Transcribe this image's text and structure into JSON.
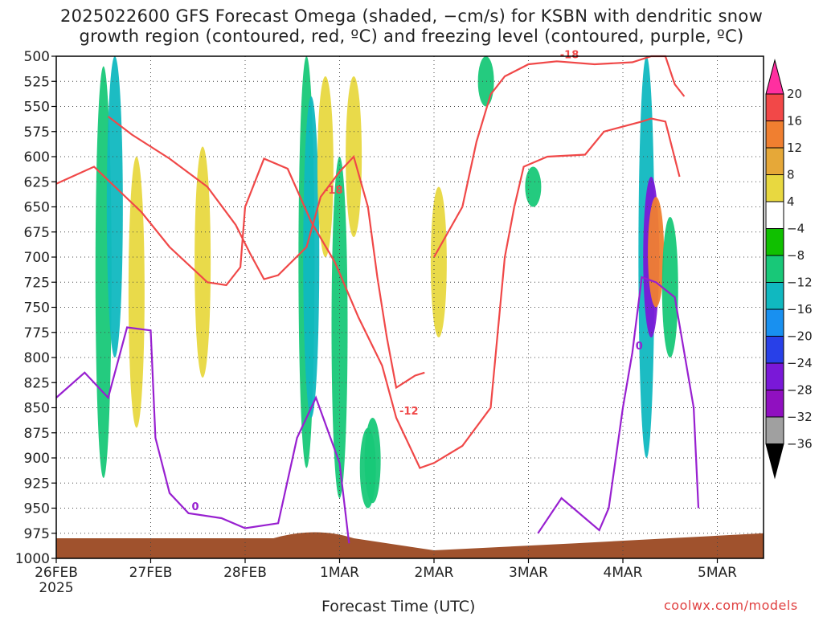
{
  "title_line1": "2025022600 GFS Forecast Omega (shaded, −cm/s) for KSBN with dendritic snow",
  "title_line2": "growth region (contoured, red, ºC) and freezing level (contoured, purple, ºC)",
  "credit": "coolwx.com/models",
  "chart_data": {
    "type": "heatmap",
    "title": "2025022600 GFS Forecast Omega (shaded, −cm/s) for KSBN with dendritic snow growth region (contoured, red, ºC) and freezing level (contoured, purple, ºC)",
    "xlabel": "Forecast Time (UTC)",
    "ylabel": "",
    "x_ticks": [
      "26FEB",
      "27FEB",
      "28FEB",
      "1MAR",
      "2MAR",
      "3MAR",
      "4MAR",
      "5MAR"
    ],
    "x_year": "2025",
    "xlim": [
      "2025-02-26 00Z",
      "2025-03-05 12Z"
    ],
    "y_ticks": [
      500,
      525,
      550,
      575,
      600,
      625,
      650,
      675,
      700,
      725,
      750,
      775,
      800,
      825,
      850,
      875,
      900,
      925,
      950,
      975,
      1000
    ],
    "ylim": [
      1000,
      500
    ],
    "y_inverted": true,
    "grid": true,
    "colorbar": {
      "labels": [
        "20",
        "16",
        "12",
        "8",
        "4",
        "−4",
        "−8",
        "−12",
        "−16",
        "−20",
        "−24",
        "−28",
        "−32",
        "−36"
      ],
      "colors": [
        "#ff2fa0",
        "#f24848",
        "#f07f30",
        "#e6a838",
        "#e8d840",
        "#ffffff",
        "#10c000",
        "#18c878",
        "#10b8c0",
        "#1890f0",
        "#2840e8",
        "#7a18d8",
        "#9010c0",
        "#a0a0a0",
        "#000000"
      ]
    },
    "omega_regions": [
      {
        "t": 0.5,
        "p_top": 510,
        "p_bot": 920,
        "value": -10
      },
      {
        "t": 0.62,
        "p_top": 500,
        "p_bot": 800,
        "value": -12
      },
      {
        "t": 0.85,
        "p_top": 600,
        "p_bot": 870,
        "value": 4
      },
      {
        "t": 1.55,
        "p_top": 590,
        "p_bot": 820,
        "value": 5
      },
      {
        "t": 2.65,
        "p_top": 500,
        "p_bot": 910,
        "value": -8
      },
      {
        "t": 2.7,
        "p_top": 540,
        "p_bot": 860,
        "value": -14
      },
      {
        "t": 2.85,
        "p_top": 520,
        "p_bot": 700,
        "value": 4
      },
      {
        "t": 3.0,
        "p_top": 600,
        "p_bot": 940,
        "value": -8
      },
      {
        "t": 3.15,
        "p_top": 520,
        "p_bot": 680,
        "value": 5
      },
      {
        "t": 3.3,
        "p_top": 870,
        "p_bot": 950,
        "value": -8
      },
      {
        "t": 3.35,
        "p_top": 860,
        "p_bot": 945,
        "value": -8
      },
      {
        "t": 4.05,
        "p_top": 630,
        "p_bot": 780,
        "value": 5
      },
      {
        "t": 4.55,
        "p_top": 500,
        "p_bot": 550,
        "value": -8
      },
      {
        "t": 5.05,
        "p_top": 610,
        "p_bot": 650,
        "value": -8
      },
      {
        "t": 6.25,
        "p_top": 500,
        "p_bot": 900,
        "value": -12
      },
      {
        "t": 6.3,
        "p_top": 620,
        "p_bot": 780,
        "value": -24
      },
      {
        "t": 6.35,
        "p_top": 640,
        "p_bot": 750,
        "value": 14
      },
      {
        "t": 6.5,
        "p_top": 660,
        "p_bot": 800,
        "value": -8
      }
    ],
    "series": [
      {
        "name": "-18",
        "color": "#f04848",
        "points": [
          [
            0.55,
            560
          ],
          [
            0.8,
            578
          ],
          [
            1.2,
            602
          ],
          [
            1.6,
            630
          ],
          [
            1.9,
            668
          ],
          [
            2.05,
            696
          ],
          [
            2.2,
            722
          ],
          [
            2.35,
            718
          ],
          [
            2.65,
            690
          ],
          [
            2.8,
            640
          ],
          [
            3.0,
            615
          ],
          [
            3.15,
            600
          ],
          [
            3.3,
            650
          ],
          [
            3.4,
            720
          ],
          [
            3.5,
            780
          ],
          [
            3.6,
            830
          ],
          [
            3.8,
            818
          ],
          [
            3.9,
            815
          ]
        ]
      },
      {
        "name": "-18",
        "color": "#f04848",
        "points": [
          [
            4.0,
            700
          ],
          [
            4.3,
            650
          ],
          [
            4.45,
            585
          ],
          [
            4.6,
            538
          ],
          [
            4.75,
            520
          ],
          [
            5.0,
            508
          ],
          [
            5.3,
            505
          ],
          [
            5.7,
            508
          ],
          [
            6.1,
            506
          ],
          [
            6.3,
            500
          ],
          [
            6.45,
            500
          ],
          [
            6.55,
            528
          ],
          [
            6.65,
            540
          ]
        ]
      },
      {
        "name": "-12",
        "color": "#f04848",
        "points": [
          [
            0.0,
            627
          ],
          [
            0.4,
            610
          ],
          [
            0.6,
            628
          ],
          [
            0.9,
            655
          ],
          [
            1.2,
            690
          ],
          [
            1.6,
            725
          ],
          [
            1.8,
            728
          ],
          [
            1.95,
            710
          ],
          [
            2.0,
            650
          ],
          [
            2.2,
            602
          ],
          [
            2.45,
            612
          ],
          [
            2.7,
            665
          ],
          [
            2.95,
            705
          ],
          [
            3.2,
            760
          ],
          [
            3.45,
            808
          ],
          [
            3.6,
            860
          ],
          [
            3.7,
            880
          ],
          [
            3.85,
            910
          ],
          [
            4.0,
            905
          ],
          [
            4.3,
            888
          ],
          [
            4.6,
            850
          ],
          [
            4.75,
            700
          ],
          [
            4.85,
            650
          ],
          [
            4.95,
            610
          ],
          [
            5.2,
            600
          ],
          [
            5.6,
            598
          ],
          [
            5.8,
            575
          ],
          [
            6.2,
            565
          ],
          [
            6.3,
            562
          ],
          [
            6.45,
            565
          ],
          [
            6.6,
            620
          ]
        ]
      }
    ],
    "freezing_level": {
      "name": "0",
      "color": "#9820d0",
      "points": [
        [
          0.0,
          840
        ],
        [
          0.3,
          815
        ],
        [
          0.55,
          840
        ],
        [
          0.75,
          770
        ],
        [
          1.0,
          773
        ],
        [
          1.05,
          880
        ],
        [
          1.2,
          935
        ],
        [
          1.4,
          955
        ],
        [
          1.75,
          960
        ],
        [
          2.0,
          970
        ],
        [
          2.35,
          965
        ],
        [
          2.55,
          880
        ],
        [
          2.75,
          840
        ],
        [
          3.0,
          905
        ],
        [
          3.1,
          985
        ]
      ]
    },
    "freezing_level_2": {
      "name": "0",
      "color": "#9820d0",
      "points": [
        [
          5.1,
          975
        ],
        [
          5.35,
          940
        ],
        [
          5.6,
          960
        ],
        [
          5.75,
          972
        ],
        [
          5.85,
          950
        ],
        [
          6.0,
          850
        ],
        [
          6.1,
          795
        ],
        [
          6.2,
          720
        ],
        [
          6.35,
          725
        ],
        [
          6.55,
          740
        ],
        [
          6.75,
          850
        ],
        [
          6.8,
          950
        ]
      ]
    },
    "surface": {
      "name": "terrain",
      "color": "#a0522d",
      "p_top": 980
    }
  }
}
